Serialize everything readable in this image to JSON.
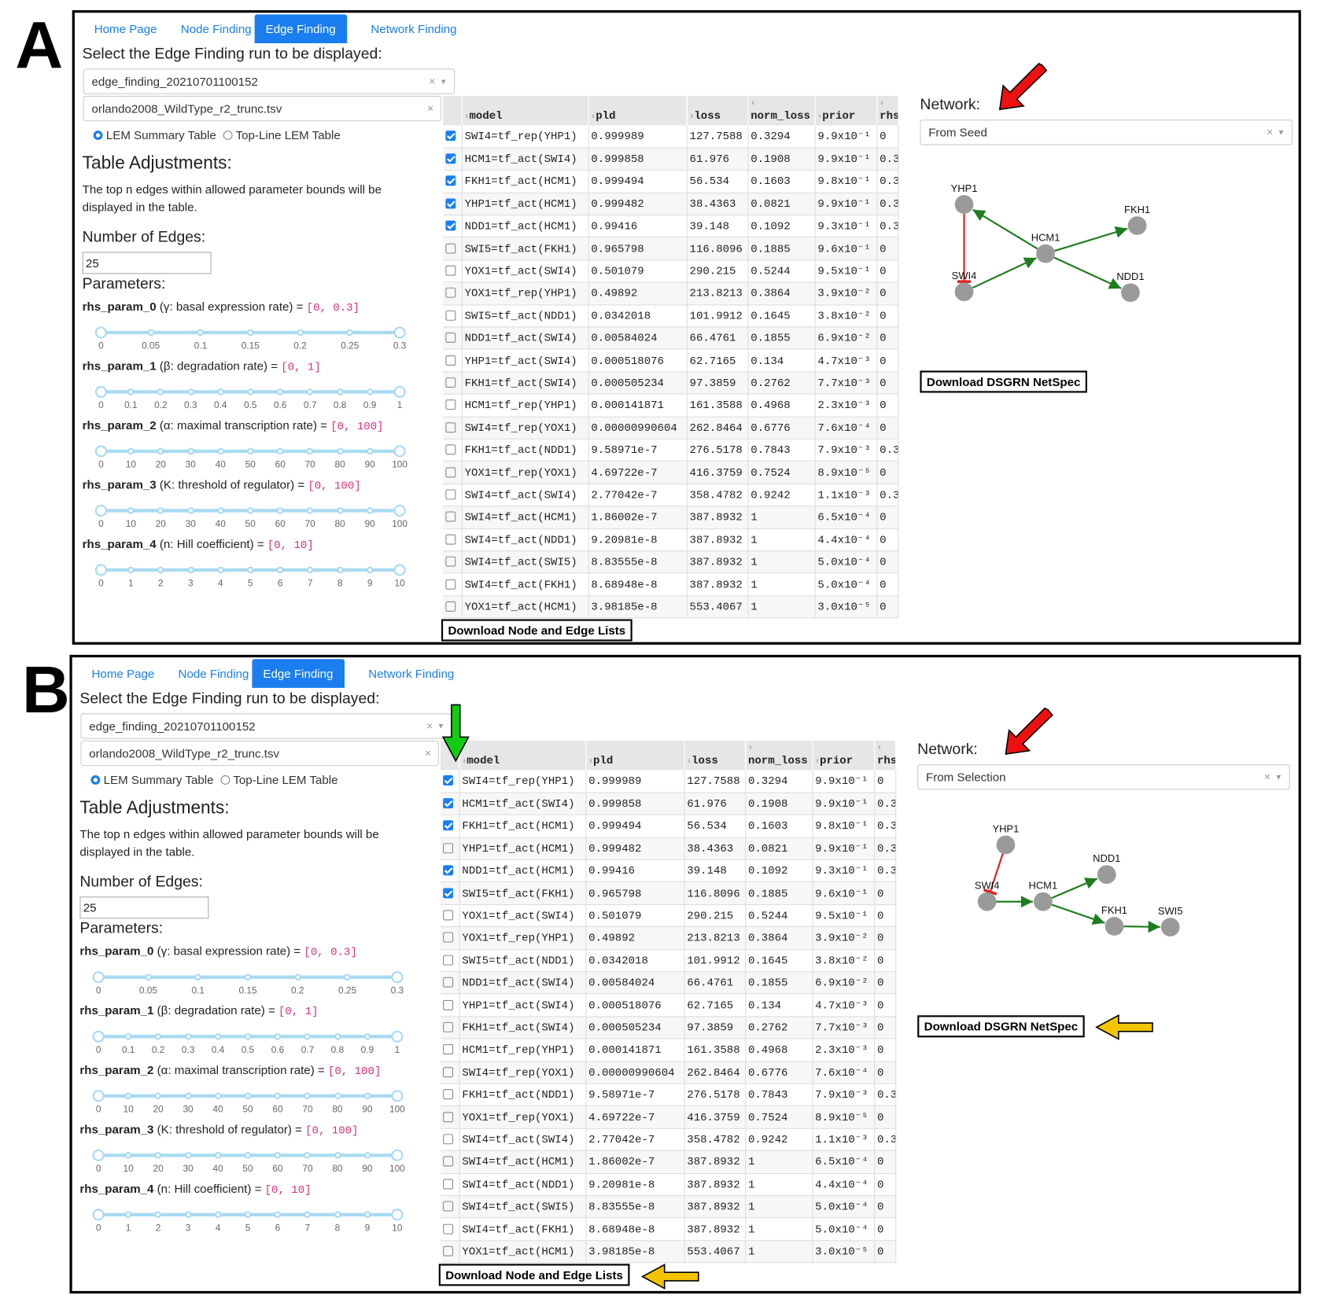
{
  "tabs": [
    "Home Page",
    "Node Finding",
    "Edge Finding",
    "Network Finding"
  ],
  "active_tab": "Edge Finding",
  "select_title": "Select the Edge Finding run to be displayed:",
  "run_select_value": "edge_finding_20210701100152",
  "file_select_value": "orlando2008_WildType_r2_trunc.tsv",
  "radios": [
    {
      "label": "LEM Summary Table",
      "checked": true
    },
    {
      "label": "Top-Line LEM Table",
      "checked": false
    }
  ],
  "table_adjustments_title": "Table Adjustments:",
  "table_adjustments_desc": "The top n edges within allowed parameter bounds will be displayed in the table.",
  "edges_label": "Number of Edges:",
  "edges_value": "25",
  "params_label": "Parameters:",
  "params": [
    {
      "name": "rhs_param_0",
      "desc": " (γ: basal expression rate) = ",
      "range": "[0, 0.3]",
      "ticks": [
        "0",
        "0.05",
        "0.1",
        "0.15",
        "0.2",
        "0.25",
        "0.3"
      ],
      "low": 0,
      "high": 0.3
    },
    {
      "name": "rhs_param_1",
      "desc": " (β: degradation rate) = ",
      "range": "[0, 1]",
      "ticks": [
        "0",
        "0.1",
        "0.2",
        "0.3",
        "0.4",
        "0.5",
        "0.6",
        "0.7",
        "0.8",
        "0.9",
        "1"
      ],
      "low": 0,
      "high": 1
    },
    {
      "name": "rhs_param_2",
      "desc": " (α: maximal transcription rate) = ",
      "range": "[0, 100]",
      "ticks": [
        "0",
        "10",
        "20",
        "30",
        "40",
        "50",
        "60",
        "70",
        "80",
        "90",
        "100"
      ],
      "low": 0,
      "high": 100
    },
    {
      "name": "rhs_param_3",
      "desc": " (K: threshold of regulator) = ",
      "range": "[0, 100]",
      "ticks": [
        "0",
        "10",
        "20",
        "30",
        "40",
        "50",
        "60",
        "70",
        "80",
        "90",
        "100"
      ],
      "low": 0,
      "high": 100
    },
    {
      "name": "rhs_param_4",
      "desc": " (n: Hill coefficient) = ",
      "range": "[0, 10]",
      "ticks": [
        "0",
        "1",
        "2",
        "3",
        "4",
        "5",
        "6",
        "7",
        "8",
        "9",
        "10"
      ],
      "low": 0,
      "high": 10
    }
  ],
  "table": {
    "columns": [
      "model",
      "pld",
      "loss",
      "norm_loss",
      "prior",
      "rhs"
    ],
    "rows": [
      [
        "SWI4=tf_rep(YHP1)",
        "0.999989",
        "127.7588",
        "0.3294",
        "9.9x10⁻¹",
        "0"
      ],
      [
        "HCM1=tf_act(SWI4)",
        "0.999858",
        "61.976",
        "0.1908",
        "9.9x10⁻¹",
        "0.3"
      ],
      [
        "FKH1=tf_act(HCM1)",
        "0.999494",
        "56.534",
        "0.1603",
        "9.8x10⁻¹",
        "0.3"
      ],
      [
        "YHP1=tf_act(HCM1)",
        "0.999482",
        "38.4363",
        "0.0821",
        "9.9x10⁻¹",
        "0.3"
      ],
      [
        "NDD1=tf_act(HCM1)",
        "0.99416",
        "39.148",
        "0.1092",
        "9.3x10⁻¹",
        "0.3"
      ],
      [
        "SWI5=tf_act(FKH1)",
        "0.965798",
        "116.8096",
        "0.1885",
        "9.6x10⁻¹",
        "0"
      ],
      [
        "YOX1=tf_act(SWI4)",
        "0.501079",
        "290.215",
        "0.5244",
        "9.5x10⁻¹",
        "0"
      ],
      [
        "YOX1=tf_rep(YHP1)",
        "0.49892",
        "213.8213",
        "0.3864",
        "3.9x10⁻²",
        "0"
      ],
      [
        "SWI5=tf_act(NDD1)",
        "0.0342018",
        "101.9912",
        "0.1645",
        "3.8x10⁻²",
        "0"
      ],
      [
        "NDD1=tf_act(SWI4)",
        "0.00584024",
        "66.4761",
        "0.1855",
        "6.9x10⁻²",
        "0"
      ],
      [
        "YHP1=tf_act(SWI4)",
        "0.000518076",
        "62.7165",
        "0.134",
        "4.7x10⁻³",
        "0"
      ],
      [
        "FKH1=tf_act(SWI4)",
        "0.000505234",
        "97.3859",
        "0.2762",
        "7.7x10⁻³",
        "0"
      ],
      [
        "HCM1=tf_rep(YHP1)",
        "0.000141871",
        "161.3588",
        "0.4968",
        "2.3x10⁻³",
        "0"
      ],
      [
        "SWI4=tf_rep(YOX1)",
        "0.00000990604",
        "262.8464",
        "0.6776",
        "7.6x10⁻⁴",
        "0"
      ],
      [
        "FKH1=tf_act(NDD1)",
        "9.58971e-7",
        "276.5178",
        "0.7843",
        "7.9x10⁻³",
        "0.3"
      ],
      [
        "YOX1=tf_rep(YOX1)",
        "4.69722e-7",
        "416.3759",
        "0.7524",
        "8.9x10⁻⁵",
        "0"
      ],
      [
        "SWI4=tf_act(SWI4)",
        "2.77042e-7",
        "358.4782",
        "0.9242",
        "1.1x10⁻³",
        "0.3"
      ],
      [
        "SWI4=tf_act(HCM1)",
        "1.86002e-7",
        "387.8932",
        "1",
        "6.5x10⁻⁴",
        "0"
      ],
      [
        "SWI4=tf_act(NDD1)",
        "9.20981e-8",
        "387.8932",
        "1",
        "4.4x10⁻⁴",
        "0"
      ],
      [
        "SWI4=tf_act(SWI5)",
        "8.83555e-8",
        "387.8932",
        "1",
        "5.0x10⁻⁴",
        "0"
      ],
      [
        "SWI4=tf_act(FKH1)",
        "8.68948e-8",
        "387.8932",
        "1",
        "5.0x10⁻⁴",
        "0"
      ],
      [
        "YOX1=tf_act(HCM1)",
        "3.98185e-8",
        "553.4067",
        "1",
        "3.0x10⁻⁵",
        "0"
      ]
    ]
  },
  "download_lists_label": "Download Node and Edge Lists",
  "network_label": "Network:",
  "download_netspec_label": "Download DSGRN NetSpec",
  "colors": {
    "accent": "#1a7ef0",
    "activation_edge": "#1e7d1e",
    "repression_edge": "#e0201c",
    "node": "#9a9a9a",
    "red_arrow": "#ee1111",
    "green_arrow": "#11cc11",
    "yellow_arrow": "#f5c400"
  },
  "panels": [
    {
      "letter": "A",
      "checked": [
        true,
        true,
        true,
        true,
        true,
        false,
        false,
        false,
        false,
        false,
        false,
        false,
        false,
        false,
        false,
        false,
        false,
        false,
        false,
        false,
        false,
        false
      ],
      "network_select_value": "From Seed",
      "nodes": [
        "YHP1",
        "FKH1",
        "HCM1",
        "SWI4",
        "NDD1"
      ],
      "edges": [
        {
          "from": "YHP1",
          "to": "SWI4",
          "type": "repression"
        },
        {
          "from": "SWI4",
          "to": "HCM1",
          "type": "activation"
        },
        {
          "from": "HCM1",
          "to": "YHP1",
          "type": "activation"
        },
        {
          "from": "HCM1",
          "to": "FKH1",
          "type": "activation"
        },
        {
          "from": "HCM1",
          "to": "NDD1",
          "type": "activation"
        }
      ],
      "annotations": [
        "red-arrow"
      ]
    },
    {
      "letter": "B",
      "checked": [
        true,
        true,
        true,
        false,
        true,
        true,
        false,
        false,
        false,
        false,
        false,
        false,
        false,
        false,
        false,
        false,
        false,
        false,
        false,
        false,
        false,
        false
      ],
      "network_select_value": "From Selection",
      "nodes": [
        "YHP1",
        "NDD1",
        "SWI4",
        "HCM1",
        "FKH1",
        "SWI5"
      ],
      "edges": [
        {
          "from": "YHP1",
          "to": "SWI4",
          "type": "repression"
        },
        {
          "from": "SWI4",
          "to": "HCM1",
          "type": "activation"
        },
        {
          "from": "HCM1",
          "to": "NDD1",
          "type": "activation"
        },
        {
          "from": "HCM1",
          "to": "FKH1",
          "type": "activation"
        },
        {
          "from": "FKH1",
          "to": "SWI5",
          "type": "activation"
        }
      ],
      "annotations": [
        "red-arrow",
        "green-arrow",
        "yellow-arrow-netspec",
        "yellow-arrow-lists"
      ]
    }
  ]
}
